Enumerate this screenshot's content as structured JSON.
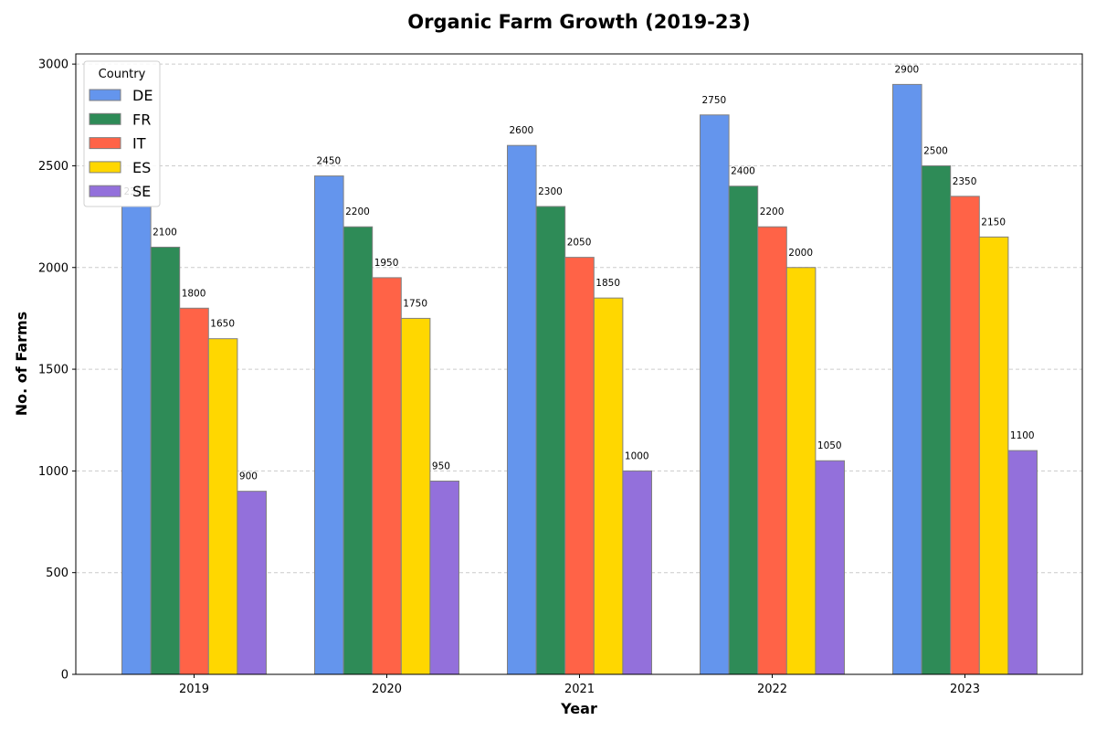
{
  "chart_data": {
    "type": "bar",
    "title": "Organic Farm Growth (2019-23)",
    "xlabel": "Year",
    "ylabel": "No. of Farms",
    "categories": [
      "2019",
      "2020",
      "2021",
      "2022",
      "2023"
    ],
    "ylim": [
      0,
      3050
    ],
    "yticks": [
      0,
      500,
      1000,
      1500,
      2000,
      2500,
      3000
    ],
    "grid": "y-dashed",
    "legend": {
      "title": "Country",
      "position": "top-left"
    },
    "series": [
      {
        "name": "DE",
        "color": "#6495ED",
        "values": [
          2300,
          2450,
          2600,
          2750,
          2900
        ]
      },
      {
        "name": "FR",
        "color": "#2E8B57",
        "values": [
          2100,
          2200,
          2300,
          2400,
          2500
        ]
      },
      {
        "name": "IT",
        "color": "#FF6347",
        "values": [
          1800,
          1950,
          2050,
          2200,
          2350
        ]
      },
      {
        "name": "ES",
        "color": "#FFD700",
        "values": [
          1650,
          1750,
          1850,
          2000,
          2150
        ]
      },
      {
        "name": "SE",
        "color": "#9370DB",
        "values": [
          900,
          950,
          1000,
          1050,
          1100
        ]
      }
    ]
  }
}
